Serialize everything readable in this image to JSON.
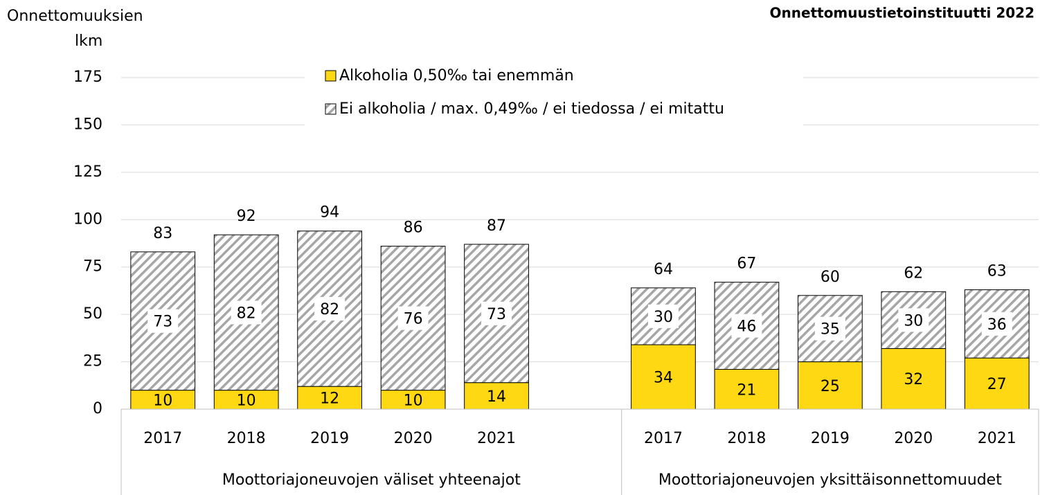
{
  "chart_data": {
    "type": "stacked_bar",
    "title": "Onnettomuustietoinstituutti  2022",
    "ylabel": [
      "Onnettomuuksien",
      "lkm"
    ],
    "groups": [
      {
        "name": "Moottoriajoneuvojen väliset yhteenajot",
        "categories": [
          "2017",
          "2018",
          "2019",
          "2020",
          "2021"
        ]
      },
      {
        "name": "Moottoriajoneuvojen yksittäisonnettomuudet",
        "categories": [
          "2017",
          "2018",
          "2019",
          "2020",
          "2021"
        ]
      }
    ],
    "series": [
      {
        "name": "Alkoholia 0,50‰ tai enemmän",
        "color": "#ffd814",
        "values": [
          10,
          10,
          12,
          10,
          14,
          34,
          21,
          25,
          32,
          27
        ]
      },
      {
        "name": "Ei alkoholia / max. 0,49‰ / ei tiedossa / ei mitattu",
        "color": "#a6a6a6",
        "pattern": "hatch",
        "values": [
          73,
          82,
          82,
          76,
          73,
          30,
          46,
          35,
          30,
          36
        ]
      }
    ],
    "totals": [
      83,
      92,
      94,
      86,
      87,
      64,
      67,
      60,
      62,
      63
    ],
    "ylim": [
      0,
      175
    ],
    "yticks": [
      0,
      25,
      50,
      75,
      100,
      125,
      150,
      175
    ],
    "grid": true
  }
}
